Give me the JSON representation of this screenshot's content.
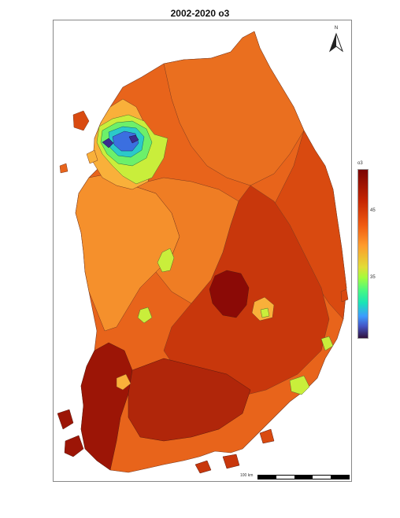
{
  "title": "2002-2020 o3",
  "north_label": "N",
  "legend": {
    "title": "o3",
    "ticks": [
      "45",
      "35"
    ]
  },
  "scale": {
    "label": "100 km"
  },
  "colors": {
    "dark_red": "#8b0a06",
    "red": "#c8370c",
    "red_orange": "#d94a10",
    "orange": "#e8641b",
    "light_orange": "#f5902c",
    "yellow_orange": "#f9b03a",
    "yellow_green": "#c9ee3b",
    "green": "#6cf06a",
    "cyan": "#2bc9c9",
    "blue": "#3b6fe0",
    "indigo": "#3a2c8f"
  }
}
